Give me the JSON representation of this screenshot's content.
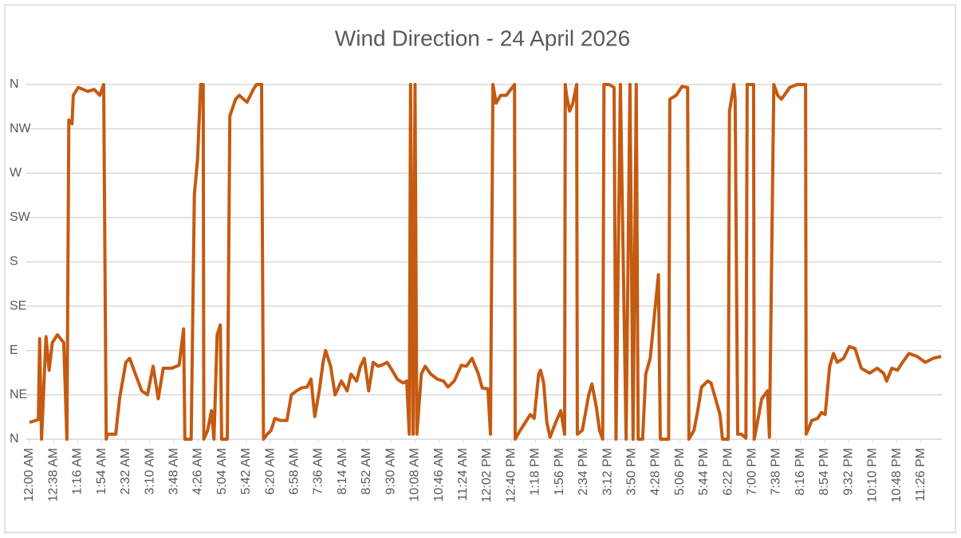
{
  "chart_data": {
    "type": "line",
    "title": "Wind Direction - 24 April 2026",
    "color": "#c55a11",
    "grid": true,
    "xlim": [
      0,
      1439
    ],
    "ylim": [
      0,
      360
    ],
    "yticks": [
      {
        "value": 0,
        "label": "N"
      },
      {
        "value": 45,
        "label": "NE"
      },
      {
        "value": 90,
        "label": "E"
      },
      {
        "value": 135,
        "label": "SE"
      },
      {
        "value": 180,
        "label": "S"
      },
      {
        "value": 225,
        "label": "SW"
      },
      {
        "value": 270,
        "label": "W"
      },
      {
        "value": 315,
        "label": "NW"
      },
      {
        "value": 360,
        "label": "N"
      }
    ],
    "xticks": [
      {
        "value": 0,
        "label": "12:00 AM"
      },
      {
        "value": 38,
        "label": "12:38 AM"
      },
      {
        "value": 76,
        "label": "1:16 AM"
      },
      {
        "value": 114,
        "label": "1:54 AM"
      },
      {
        "value": 152,
        "label": "2:32 AM"
      },
      {
        "value": 190,
        "label": "3:10 AM"
      },
      {
        "value": 228,
        "label": "3:48 AM"
      },
      {
        "value": 266,
        "label": "4:26 AM"
      },
      {
        "value": 304,
        "label": "5:04 AM"
      },
      {
        "value": 342,
        "label": "5:42 AM"
      },
      {
        "value": 380,
        "label": "6:20 AM"
      },
      {
        "value": 418,
        "label": "6:58 AM"
      },
      {
        "value": 456,
        "label": "7:36 AM"
      },
      {
        "value": 494,
        "label": "8:14 AM"
      },
      {
        "value": 532,
        "label": "8:52 AM"
      },
      {
        "value": 570,
        "label": "9:30 AM"
      },
      {
        "value": 608,
        "label": "10:08 AM"
      },
      {
        "value": 646,
        "label": "10:46 AM"
      },
      {
        "value": 684,
        "label": "11:24 AM"
      },
      {
        "value": 722,
        "label": "12:02 PM"
      },
      {
        "value": 760,
        "label": "12:40 PM"
      },
      {
        "value": 798,
        "label": "1:18 PM"
      },
      {
        "value": 836,
        "label": "1:56 PM"
      },
      {
        "value": 874,
        "label": "2:34 PM"
      },
      {
        "value": 912,
        "label": "3:12 PM"
      },
      {
        "value": 950,
        "label": "3:50 PM"
      },
      {
        "value": 988,
        "label": "4:28 PM"
      },
      {
        "value": 1026,
        "label": "5:06 PM"
      },
      {
        "value": 1064,
        "label": "5:44 PM"
      },
      {
        "value": 1102,
        "label": "6:22 PM"
      },
      {
        "value": 1140,
        "label": "7:00 PM"
      },
      {
        "value": 1178,
        "label": "7:38 PM"
      },
      {
        "value": 1216,
        "label": "8:16 PM"
      },
      {
        "value": 1254,
        "label": "8:54 PM"
      },
      {
        "value": 1292,
        "label": "9:32 PM"
      },
      {
        "value": 1330,
        "label": "10:10 PM"
      },
      {
        "value": 1368,
        "label": "10:48 PM"
      },
      {
        "value": 1406,
        "label": "11:26 PM"
      }
    ],
    "x": [
      0,
      10,
      14,
      16,
      19,
      26,
      31,
      36,
      44,
      54,
      59,
      62,
      67,
      69,
      77,
      92,
      102,
      111,
      117,
      121,
      123,
      136,
      142,
      152,
      158,
      167,
      177,
      186,
      195,
      203,
      211,
      224,
      236,
      243,
      245,
      255,
      260,
      265,
      270,
      274,
      275,
      281,
      287,
      291,
      296,
      301,
      303,
      312,
      316,
      325,
      331,
      343,
      353,
      358,
      366,
      369,
      375,
      381,
      387,
      396,
      406,
      413,
      421,
      429,
      438,
      444,
      450,
      457,
      463,
      467,
      475,
      482,
      492,
      501,
      507,
      516,
      522,
      528,
      535,
      542,
      550,
      555,
      564,
      572,
      580,
      589,
      595,
      599,
      601,
      605,
      608,
      611,
      618,
      624,
      633,
      643,
      653,
      660,
      670,
      681,
      689,
      698,
      708,
      714,
      723,
      727,
      731,
      736,
      743,
      752,
      765,
      766,
      774,
      784,
      790,
      796,
      803,
      806,
      811,
      816,
      821,
      830,
      838,
      844,
      845,
      847,
      852,
      857,
      863,
      864,
      872,
      882,
      887,
      894,
      899,
      904,
      906,
      914,
      922,
      925,
      932,
      941,
      947,
      952,
      957,
      960,
      967,
      972,
      979,
      985,
      992,
      995,
      1008,
      1010,
      1020,
      1029,
      1038,
      1040,
      1048,
      1054,
      1060,
      1070,
      1075,
      1082,
      1089,
      1093,
      1102,
      1104,
      1111,
      1113,
      1117,
      1123,
      1130,
      1132,
      1142,
      1143,
      1148,
      1155,
      1164,
      1167,
      1174,
      1180,
      1186,
      1199,
      1211,
      1224,
      1225,
      1234,
      1243,
      1249,
      1255,
      1262,
      1268,
      1274,
      1284,
      1293,
      1302,
      1312,
      1325,
      1337,
      1347,
      1352,
      1360,
      1369,
      1377,
      1387,
      1400,
      1413,
      1425,
      1438
    ],
    "values": [
      17,
      19,
      20,
      102,
      0,
      104,
      70,
      98,
      106,
      98,
      0,
      324,
      320,
      349,
      357,
      353,
      355,
      349,
      360,
      0,
      5,
      5,
      41,
      78,
      82,
      66,
      49,
      45,
      74,
      41,
      72,
      72,
      75,
      112,
      0,
      0,
      248,
      284,
      360,
      360,
      0,
      9,
      29,
      0,
      106,
      116,
      0,
      0,
      328,
      345,
      349,
      342,
      355,
      360,
      360,
      0,
      5,
      9,
      21,
      19,
      19,
      45,
      49,
      52,
      53,
      61,
      23,
      49,
      78,
      90,
      74,
      45,
      59,
      49,
      66,
      59,
      74,
      82,
      49,
      78,
      74,
      75,
      78,
      70,
      61,
      57,
      59,
      5,
      360,
      5,
      360,
      5,
      66,
      74,
      66,
      61,
      59,
      53,
      59,
      75,
      74,
      82,
      66,
      52,
      51,
      5,
      360,
      341,
      349,
      349,
      360,
      0,
      9,
      19,
      25,
      21,
      66,
      70,
      57,
      17,
      2,
      17,
      29,
      5,
      360,
      349,
      333,
      341,
      360,
      5,
      9,
      45,
      56,
      33,
      9,
      0,
      360,
      360,
      357,
      0,
      360,
      0,
      360,
      0,
      360,
      0,
      0,
      66,
      82,
      122,
      167,
      0,
      0,
      345,
      349,
      358,
      357,
      0,
      9,
      29,
      53,
      59,
      57,
      41,
      25,
      0,
      0,
      333,
      360,
      345,
      5,
      5,
      1,
      360,
      360,
      0,
      17,
      41,
      49,
      2,
      360,
      349,
      345,
      357,
      360,
      360,
      5,
      19,
      21,
      27,
      25,
      74,
      87,
      78,
      82,
      94,
      92,
      72,
      67,
      72,
      67,
      59,
      72,
      70,
      78,
      87,
      84,
      78,
      82,
      84
    ]
  }
}
